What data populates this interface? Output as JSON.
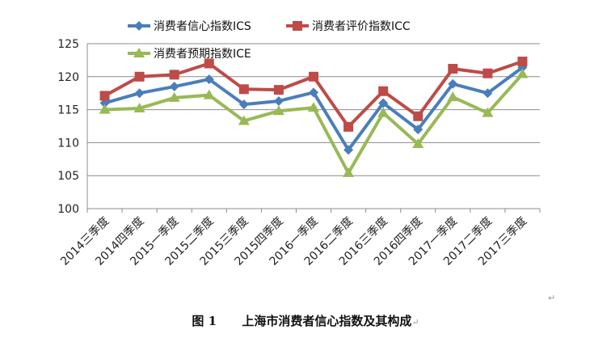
{
  "chart_data": {
    "type": "line",
    "categories": [
      "2014三季度",
      "2014四季度",
      "2015一季度",
      "2015二季度",
      "2015三季度",
      "2015四季度",
      "2016一季度",
      "2016二季度",
      "2016三季度",
      "2016四季度",
      "2017一季度",
      "2017二季度",
      "2017三季度"
    ],
    "series": [
      {
        "name": "消费者信心指数ICS",
        "color": "#4a7ebb",
        "marker": "diamond",
        "values": [
          116.0,
          117.5,
          118.5,
          119.6,
          115.8,
          116.3,
          117.6,
          108.9,
          116.0,
          112.0,
          118.9,
          117.5,
          121.4
        ]
      },
      {
        "name": "消费者评价指数ICC",
        "color": "#be4b48",
        "marker": "square",
        "values": [
          117.1,
          120.0,
          120.3,
          122.0,
          118.1,
          118.0,
          120.0,
          112.4,
          117.8,
          114.0,
          121.2,
          120.5,
          122.3
        ]
      },
      {
        "name": "消费者预期指数ICE",
        "color": "#98b954",
        "marker": "triangle",
        "values": [
          115.0,
          115.2,
          116.8,
          117.2,
          113.3,
          114.8,
          115.3,
          105.4,
          114.5,
          109.8,
          116.9,
          114.5,
          120.4
        ]
      }
    ],
    "y_ticks": [
      "100",
      "105",
      "110",
      "115",
      "120",
      "125"
    ],
    "ylim": [
      100,
      125
    ],
    "grid": "horizontal",
    "legend_position": "top"
  },
  "caption": {
    "figure_no": "图 1",
    "title": "上海市消费者信心指数及其构成"
  }
}
